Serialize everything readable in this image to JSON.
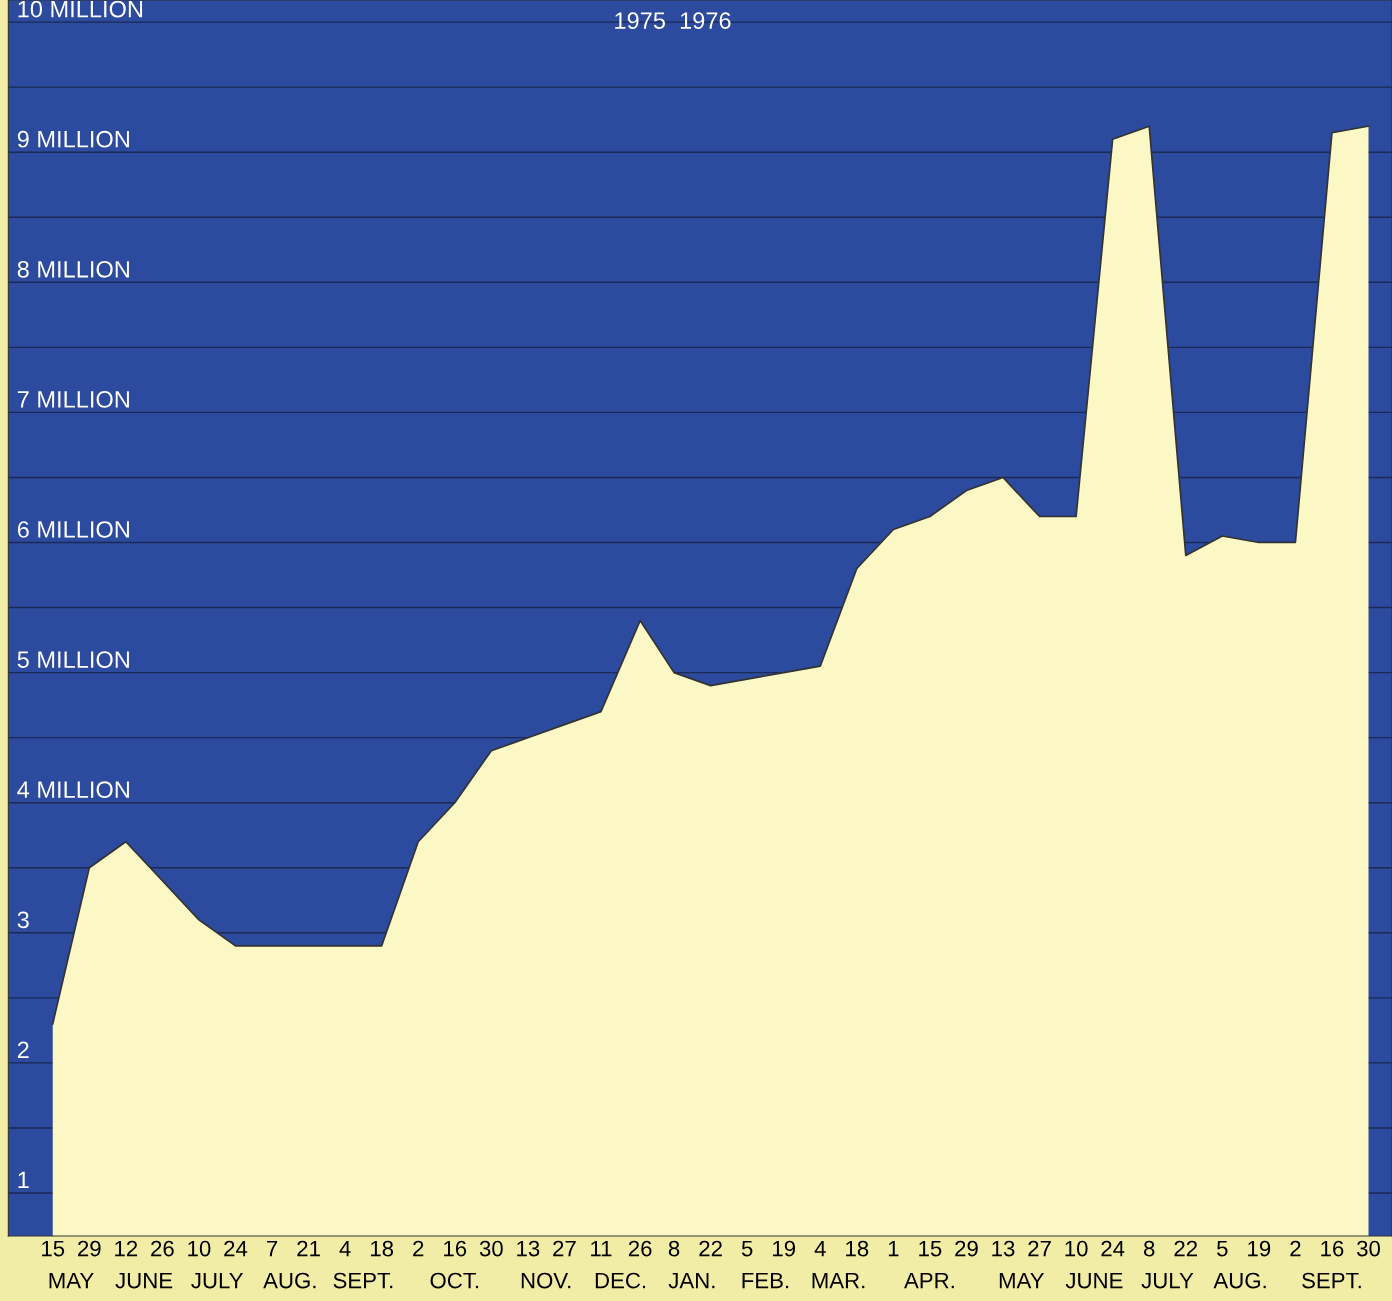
{
  "chart_data": {
    "type": "area",
    "title": "1975  1976",
    "x": [
      "1975-05-15",
      "1975-05-29",
      "1975-06-12",
      "1975-06-26",
      "1975-07-10",
      "1975-07-24",
      "1975-08-07",
      "1975-08-21",
      "1975-09-04",
      "1975-09-18",
      "1975-10-02",
      "1975-10-16",
      "1975-10-30",
      "1975-11-13",
      "1975-11-27",
      "1975-12-11",
      "1975-12-26",
      "1976-01-08",
      "1976-01-22",
      "1976-02-05",
      "1976-02-19",
      "1976-03-04",
      "1976-03-18",
      "1976-04-01",
      "1976-04-15",
      "1976-04-29",
      "1976-05-13",
      "1976-05-27",
      "1976-06-10",
      "1976-06-24",
      "1976-07-08",
      "1976-07-22",
      "1976-08-05",
      "1976-08-19",
      "1976-09-02",
      "1976-09-16",
      "1976-09-30"
    ],
    "series": [
      {
        "color": "#fbf8c6",
        "values": [
          2.3,
          3.5,
          3.7,
          3.4,
          3.1,
          2.9,
          2.9,
          2.9,
          2.9,
          2.9,
          3.7,
          4.0,
          4.4,
          4.5,
          4.6,
          4.7,
          5.4,
          5.0,
          4.9,
          4.95,
          5.0,
          5.05,
          5.8,
          6.1,
          6.2,
          6.4,
          6.5,
          6.2,
          6.2,
          9.1,
          9.2,
          5.9,
          6.05,
          6.0,
          6.0,
          9.15,
          9.2
        ]
      }
    ],
    "xlim": [
      "1975-04-28",
      "1976-10-09"
    ],
    "xticks": [
      {
        "value": "1975-05-15",
        "label": "15"
      },
      {
        "value": "1975-05-29",
        "label": "29"
      },
      {
        "value": "1975-06-12",
        "label": "12"
      },
      {
        "value": "1975-06-26",
        "label": "26"
      },
      {
        "value": "1975-07-10",
        "label": "10"
      },
      {
        "value": "1975-07-24",
        "label": "24"
      },
      {
        "value": "1975-08-07",
        "label": "7"
      },
      {
        "value": "1975-08-21",
        "label": "21"
      },
      {
        "value": "1975-09-04",
        "label": "4"
      },
      {
        "value": "1975-09-18",
        "label": "18"
      },
      {
        "value": "1975-10-02",
        "label": "2"
      },
      {
        "value": "1975-10-16",
        "label": "16"
      },
      {
        "value": "1975-10-30",
        "label": "30"
      },
      {
        "value": "1975-11-13",
        "label": "13"
      },
      {
        "value": "1975-11-27",
        "label": "27"
      },
      {
        "value": "1975-12-11",
        "label": "11"
      },
      {
        "value": "1975-12-26",
        "label": "26"
      },
      {
        "value": "1976-01-08",
        "label": "8"
      },
      {
        "value": "1976-01-22",
        "label": "22"
      },
      {
        "value": "1976-02-05",
        "label": "5"
      },
      {
        "value": "1976-02-19",
        "label": "19"
      },
      {
        "value": "1976-03-04",
        "label": "4"
      },
      {
        "value": "1976-03-18",
        "label": "18"
      },
      {
        "value": "1976-04-01",
        "label": "1"
      },
      {
        "value": "1976-04-15",
        "label": "15"
      },
      {
        "value": "1976-04-29",
        "label": "29"
      },
      {
        "value": "1976-05-13",
        "label": "13"
      },
      {
        "value": "1976-05-27",
        "label": "27"
      },
      {
        "value": "1976-06-10",
        "label": "10"
      },
      {
        "value": "1976-06-24",
        "label": "24"
      },
      {
        "value": "1976-07-08",
        "label": "8"
      },
      {
        "value": "1976-07-22",
        "label": "22"
      },
      {
        "value": "1976-08-05",
        "label": "5"
      },
      {
        "value": "1976-08-19",
        "label": "19"
      },
      {
        "value": "1976-09-02",
        "label": "2"
      },
      {
        "value": "1976-09-16",
        "label": "16"
      },
      {
        "value": "1976-09-30",
        "label": "30"
      }
    ],
    "ylim": [
      0.67,
      10.17
    ],
    "yticks": [
      {
        "value": 1,
        "label": "1"
      },
      {
        "value": 1.5,
        "label": null
      },
      {
        "value": 2,
        "label": "2"
      },
      {
        "value": 2.5,
        "label": null
      },
      {
        "value": 3,
        "label": "3"
      },
      {
        "value": 3.5,
        "label": null
      },
      {
        "value": 4,
        "label": "4 MILLION"
      },
      {
        "value": 4.5,
        "label": null
      },
      {
        "value": 5,
        "label": "5 MILLION"
      },
      {
        "value": 5.5,
        "label": null
      },
      {
        "value": 6,
        "label": "6 MILLION"
      },
      {
        "value": 6.5,
        "label": null
      },
      {
        "value": 7,
        "label": "7 MILLION"
      },
      {
        "value": 7.5,
        "label": null
      },
      {
        "value": 8,
        "label": "8 MILLION"
      },
      {
        "value": 8.5,
        "label": null
      },
      {
        "value": 9,
        "label": "9 MILLION"
      },
      {
        "value": 9.5,
        "label": null
      },
      {
        "value": 10,
        "label": "10 MILLION"
      }
    ],
    "grid": "y",
    "annotations": [
      "MAY",
      "JUNE",
      "JULY",
      "AUG.",
      "SEPT.",
      "OCT.",
      "NOV.",
      "DEC.",
      "JAN.",
      "FEB.",
      "MAR.",
      "APR.",
      "MAY",
      "JUNE",
      "JULY",
      "AUG.",
      "SEPT."
    ]
  }
}
